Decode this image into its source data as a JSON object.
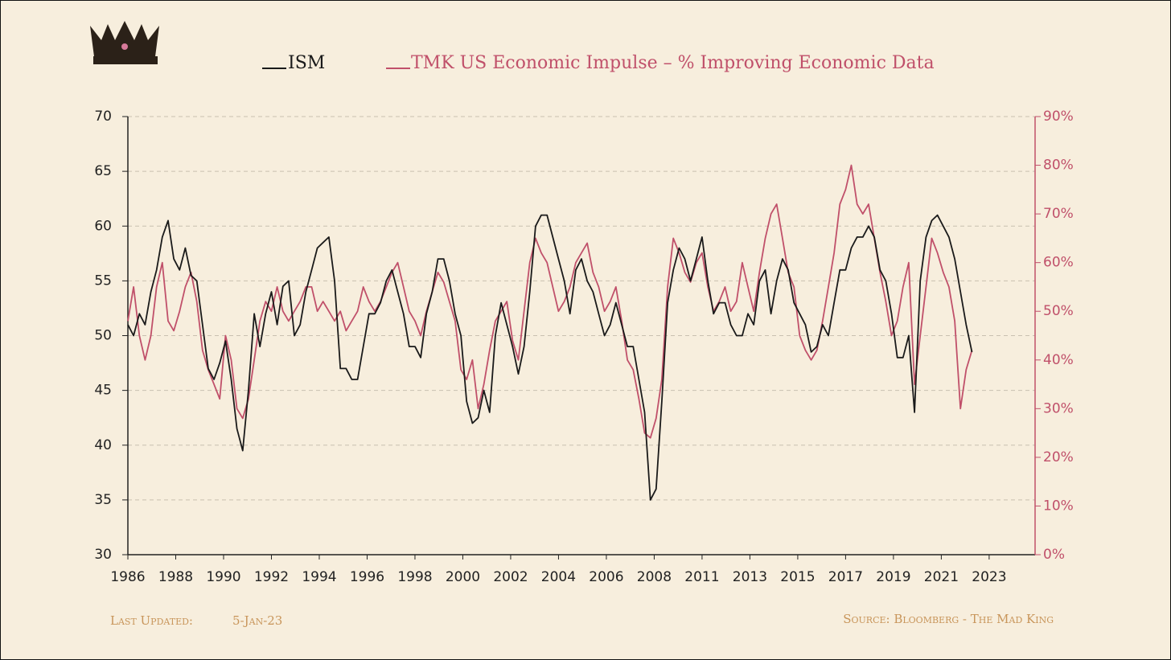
{
  "chart_data": {
    "type": "line",
    "x": [
      0,
      3,
      6,
      9,
      12,
      15,
      18,
      21,
      24,
      27,
      30,
      33,
      36,
      39,
      42,
      45,
      48,
      51,
      54,
      57,
      60,
      63,
      66,
      69,
      72,
      75,
      78,
      81,
      84,
      87,
      90,
      93,
      96,
      99,
      102,
      105,
      108,
      111,
      114,
      117,
      120,
      123,
      126,
      129,
      132,
      135,
      138,
      141,
      144,
      147,
      150,
      153,
      156,
      159,
      162,
      165,
      168,
      171,
      174,
      177,
      180,
      183,
      186,
      189,
      192,
      195,
      198,
      201,
      204,
      207,
      210,
      213,
      216,
      219,
      222,
      225,
      228,
      231,
      234,
      237,
      240,
      243,
      246,
      249,
      252,
      255,
      258,
      261,
      264,
      267,
      270,
      273,
      276,
      279,
      282,
      285,
      288,
      291,
      294,
      297,
      300,
      303,
      306,
      309,
      312,
      315,
      318,
      321,
      324,
      327,
      330,
      333,
      336,
      339,
      342,
      345,
      348,
      351,
      354,
      357,
      360,
      363,
      366,
      369,
      372,
      375,
      378,
      381,
      384,
      387,
      390,
      393,
      396,
      399,
      402,
      405,
      408,
      411,
      414,
      417,
      420,
      423,
      426,
      429,
      432,
      435,
      438,
      441
    ],
    "xlim": [
      0,
      474
    ],
    "xticks": [
      {
        "value": 0,
        "label": "1986"
      },
      {
        "value": 25,
        "label": "1988"
      },
      {
        "value": 50,
        "label": "1990"
      },
      {
        "value": 75,
        "label": "1992"
      },
      {
        "value": 100,
        "label": "1994"
      },
      {
        "value": 125,
        "label": "1996"
      },
      {
        "value": 150,
        "label": "1998"
      },
      {
        "value": 175,
        "label": "2000"
      },
      {
        "value": 200,
        "label": "2002"
      },
      {
        "value": 225,
        "label": "2004"
      },
      {
        "value": 250,
        "label": "2006"
      },
      {
        "value": 275,
        "label": "2008"
      },
      {
        "value": 300,
        "label": "2011"
      },
      {
        "value": 325,
        "label": "2013"
      },
      {
        "value": 350,
        "label": "2015"
      },
      {
        "value": 375,
        "label": "2017"
      },
      {
        "value": 400,
        "label": "2019"
      },
      {
        "value": 425,
        "label": "2021"
      },
      {
        "value": 450,
        "label": "2023"
      }
    ],
    "ylim": [
      30,
      70
    ],
    "yticks": [
      30,
      35,
      40,
      45,
      50,
      55,
      60,
      65,
      70
    ],
    "y2lim": [
      0,
      90
    ],
    "y2ticks": [
      {
        "value": 0,
        "label": "0%"
      },
      {
        "value": 10,
        "label": "10%"
      },
      {
        "value": 20,
        "label": "20%"
      },
      {
        "value": 30,
        "label": "30%"
      },
      {
        "value": 40,
        "label": "40%"
      },
      {
        "value": 50,
        "label": "50%"
      },
      {
        "value": 60,
        "label": "60%"
      },
      {
        "value": 70,
        "label": "70%"
      },
      {
        "value": 80,
        "label": "80%"
      },
      {
        "value": 90,
        "label": "90%"
      }
    ],
    "grid": true,
    "series": [
      {
        "name": "ISM",
        "color": "#1a1a1a",
        "values": [
          51,
          50,
          52,
          51,
          54,
          56,
          59,
          60.5,
          57,
          56,
          58,
          55.5,
          55,
          51,
          47,
          46,
          47.5,
          49.5,
          46,
          41.5,
          39.5,
          45,
          52,
          49,
          52,
          54,
          51,
          54.5,
          55,
          50,
          51,
          54,
          56,
          58,
          58.5,
          59,
          55,
          47,
          47,
          46,
          46,
          49,
          52,
          52,
          53,
          55,
          56,
          54,
          52,
          49,
          49,
          48,
          52,
          54,
          57,
          57,
          55,
          52,
          50,
          44,
          42,
          42.5,
          45,
          43,
          50,
          53,
          51,
          49,
          46.5,
          49,
          54,
          60,
          61,
          61,
          59,
          57,
          55,
          52,
          56,
          57,
          55,
          54,
          52,
          50,
          51,
          53,
          51,
          49,
          49,
          46,
          43,
          35,
          36,
          44,
          53,
          56,
          58,
          57,
          55,
          57,
          59,
          55,
          52,
          53,
          53,
          51,
          50,
          50,
          52,
          51,
          55,
          56,
          52,
          55,
          57,
          56,
          53,
          52,
          51,
          48.5,
          49,
          51,
          50,
          53,
          56,
          56,
          58,
          59,
          59,
          60,
          59,
          56,
          55,
          52,
          48,
          48,
          50,
          43,
          55,
          59,
          60.5,
          61,
          60,
          59,
          57,
          54,
          51,
          48.5
        ]
      },
      {
        "name": "TMK US Economic Impulse – % Improving Economic Data",
        "color": "#c0506a",
        "axis": "y2",
        "values": [
          48,
          55,
          45,
          40,
          45,
          55,
          60,
          48,
          46,
          50,
          55,
          58,
          52,
          42,
          38,
          35,
          32,
          45,
          40,
          30,
          28,
          32,
          40,
          48,
          52,
          50,
          55,
          50,
          48,
          50,
          52,
          55,
          55,
          50,
          52,
          50,
          48,
          50,
          46,
          48,
          50,
          55,
          52,
          50,
          52,
          55,
          58,
          60,
          55,
          50,
          48,
          45,
          50,
          54,
          58,
          56,
          52,
          48,
          38,
          36,
          40,
          30,
          35,
          42,
          48,
          50,
          52,
          44,
          40,
          50,
          60,
          65,
          62,
          60,
          55,
          50,
          52,
          55,
          60,
          62,
          64,
          58,
          55,
          50,
          52,
          55,
          48,
          40,
          38,
          32,
          25,
          24,
          28,
          36,
          55,
          65,
          62,
          58,
          56,
          60,
          62,
          55,
          50,
          52,
          55,
          50,
          52,
          60,
          55,
          50,
          58,
          65,
          70,
          72,
          65,
          58,
          55,
          45,
          42,
          40,
          42,
          48,
          55,
          62,
          72,
          75,
          80,
          72,
          70,
          72,
          65,
          58,
          52,
          45,
          48,
          55,
          60,
          35,
          45,
          55,
          65,
          62,
          58,
          55,
          48,
          30,
          38,
          42
        ]
      }
    ],
    "footer_left_label": "Last Updated:",
    "footer_left_date": "5-Jan-23",
    "footer_right": "Source: Bloomberg - The Mad King"
  }
}
